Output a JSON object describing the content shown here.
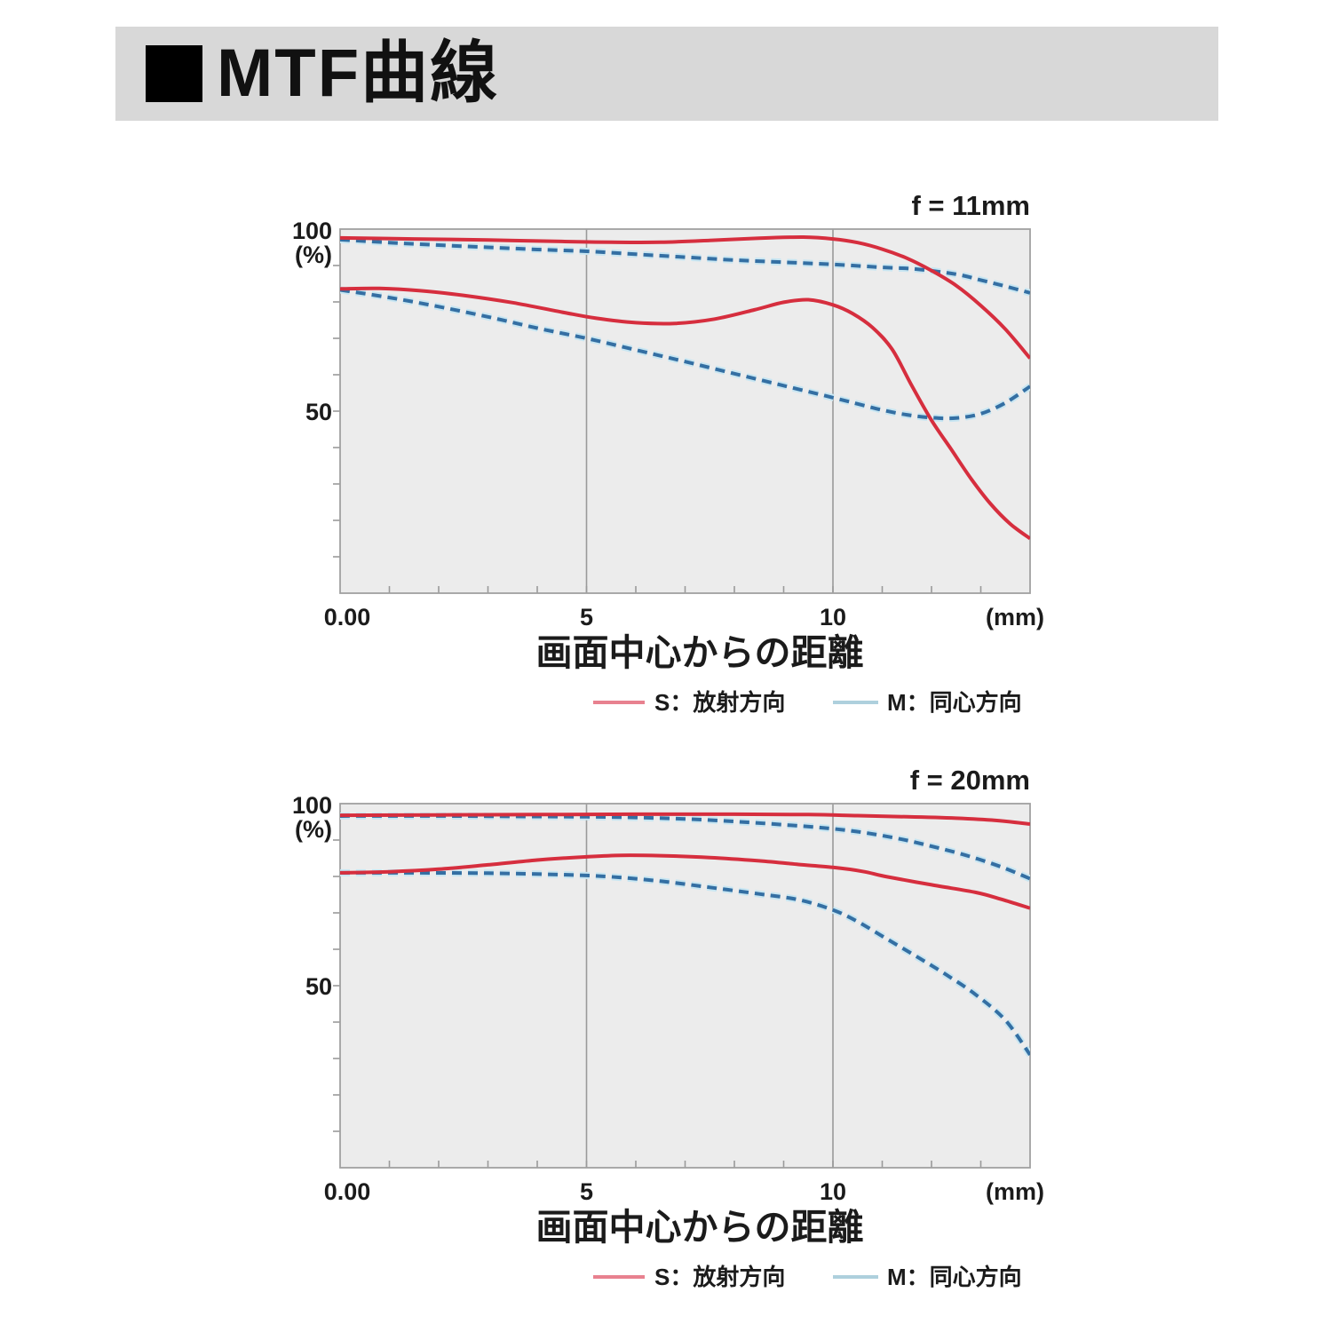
{
  "header": {
    "square_icon": "black-square",
    "title": "MTF曲線",
    "bar_color": "#d8d8d8"
  },
  "chart_data": [
    {
      "type": "line",
      "title": "f = 11mm",
      "xlabel": "画面中心からの距離",
      "x_unit_label": "(mm)",
      "xlim": [
        0,
        14
      ],
      "ylim": [
        0,
        100
      ],
      "y_axis_labels": {
        "top": "100",
        "unit": "(%)",
        "mid": "50"
      },
      "x_tick_labels": [
        {
          "x": 0,
          "label": "0.00"
        },
        {
          "x": 5,
          "label": "5"
        },
        {
          "x": 10,
          "label": "10"
        }
      ],
      "x_minor_tick_step": 1,
      "y_minor_tick_step": 10,
      "gridlines_x": [
        5,
        10
      ],
      "grid_on": true,
      "grid_color": "#9a9a9a",
      "plot_bg": "#ececec",
      "border_color": "#a0a0a0",
      "legend_position": "below",
      "legend": [
        {
          "label": "S：放射方向",
          "swatch_color": "#e8818f"
        },
        {
          "label": "M：同心方向",
          "swatch_color": "#aed0dd"
        }
      ],
      "series": [
        {
          "name": "S-upper",
          "style": "solid",
          "color": "#d62e3e",
          "points": [
            [
              0,
              97.6
            ],
            [
              1.5,
              97.3
            ],
            [
              3,
              97.0
            ],
            [
              4.5,
              96.6
            ],
            [
              5.5,
              96.4
            ],
            [
              6.5,
              96.4
            ],
            [
              7.5,
              96.9
            ],
            [
              8.5,
              97.5
            ],
            [
              9.4,
              97.8
            ],
            [
              10,
              97.3
            ],
            [
              10.5,
              96.3
            ],
            [
              11,
              94.5
            ],
            [
              11.5,
              92
            ],
            [
              12,
              88.6
            ],
            [
              12.5,
              84.5
            ],
            [
              13,
              79
            ],
            [
              13.5,
              72.5
            ],
            [
              14,
              64.5
            ]
          ]
        },
        {
          "name": "M-upper",
          "style": "dashed",
          "color": "#346fa3",
          "halo": "#c8e6f2",
          "points": [
            [
              0,
              97.1
            ],
            [
              1,
              96.3
            ],
            [
              2,
              95.6
            ],
            [
              3,
              95
            ],
            [
              4,
              94.4
            ],
            [
              5,
              93.9
            ],
            [
              6,
              93.1
            ],
            [
              7,
              92.3
            ],
            [
              8,
              91.5
            ],
            [
              9,
              90.9
            ],
            [
              10,
              90.3
            ],
            [
              11,
              89.5
            ],
            [
              11.7,
              89
            ],
            [
              12.5,
              87.6
            ],
            [
              13,
              86
            ],
            [
              13.5,
              84.3
            ],
            [
              14,
              82.5
            ]
          ]
        },
        {
          "name": "S-lower",
          "style": "solid",
          "color": "#d62e3e",
          "points": [
            [
              0,
              83.6
            ],
            [
              0.8,
              83.7
            ],
            [
              1.6,
              83.1
            ],
            [
              2.5,
              81.8
            ],
            [
              3.5,
              79.8
            ],
            [
              4.5,
              77.2
            ],
            [
              5.2,
              75.5
            ],
            [
              6,
              74.3
            ],
            [
              6.8,
              74.1
            ],
            [
              7.6,
              75.3
            ],
            [
              8.4,
              77.8
            ],
            [
              9,
              79.9
            ],
            [
              9.5,
              80.6
            ],
            [
              10,
              79.2
            ],
            [
              10.4,
              76.8
            ],
            [
              10.8,
              73
            ],
            [
              11.2,
              67
            ],
            [
              11.6,
              57
            ],
            [
              12,
              47.5
            ],
            [
              12.4,
              39.5
            ],
            [
              12.8,
              31.5
            ],
            [
              13.2,
              24.5
            ],
            [
              13.6,
              19
            ],
            [
              14,
              15
            ]
          ]
        },
        {
          "name": "M-lower",
          "style": "dashed",
          "color": "#346fa3",
          "halo": "#c8e6f2",
          "points": [
            [
              0,
              83.3
            ],
            [
              1,
              81.2
            ],
            [
              2,
              78.7
            ],
            [
              3,
              75.9
            ],
            [
              4,
              72.8
            ],
            [
              5,
              70
            ],
            [
              6,
              66.8
            ],
            [
              7,
              63.6
            ],
            [
              8,
              60.3
            ],
            [
              9,
              57
            ],
            [
              10,
              53.7
            ],
            [
              10.5,
              52
            ],
            [
              11,
              50.3
            ],
            [
              11.5,
              49
            ],
            [
              12,
              48.2
            ],
            [
              12.5,
              48.1
            ],
            [
              13,
              49.3
            ],
            [
              13.5,
              52.3
            ],
            [
              14,
              56.8
            ]
          ]
        }
      ]
    },
    {
      "type": "line",
      "title": "f = 20mm",
      "xlabel": "画面中心からの距離",
      "x_unit_label": "(mm)",
      "xlim": [
        0,
        14
      ],
      "ylim": [
        0,
        100
      ],
      "y_axis_labels": {
        "top": "100",
        "unit": "(%)",
        "mid": "50"
      },
      "x_tick_labels": [
        {
          "x": 0,
          "label": "0.00"
        },
        {
          "x": 5,
          "label": "5"
        },
        {
          "x": 10,
          "label": "10"
        }
      ],
      "x_minor_tick_step": 1,
      "y_minor_tick_step": 10,
      "gridlines_x": [
        5,
        10
      ],
      "grid_on": true,
      "grid_color": "#9a9a9a",
      "plot_bg": "#ececec",
      "border_color": "#a0a0a0",
      "legend_position": "below",
      "legend": [
        {
          "label": "S：放射方向",
          "swatch_color": "#e8818f"
        },
        {
          "label": "M：同心方向",
          "swatch_color": "#aed0dd"
        }
      ],
      "series": [
        {
          "name": "S-upper",
          "style": "solid",
          "color": "#d62e3e",
          "points": [
            [
              0,
              96.8
            ],
            [
              2,
              96.9
            ],
            [
              4,
              97
            ],
            [
              6,
              97.1
            ],
            [
              8,
              97.1
            ],
            [
              9.5,
              97
            ],
            [
              10.5,
              96.7
            ],
            [
              11.5,
              96.4
            ],
            [
              12.5,
              96
            ],
            [
              13.3,
              95.4
            ],
            [
              14,
              94.4
            ]
          ]
        },
        {
          "name": "M-upper",
          "style": "dashed",
          "color": "#346fa3",
          "halo": "#c8e6f2",
          "points": [
            [
              0,
              96.6
            ],
            [
              2,
              96.6
            ],
            [
              3.5,
              96.5
            ],
            [
              5,
              96.4
            ],
            [
              6,
              96.2
            ],
            [
              7,
              95.8
            ],
            [
              8,
              95.1
            ],
            [
              9,
              94.2
            ],
            [
              10,
              93.1
            ],
            [
              10.7,
              91.9
            ],
            [
              11.4,
              90.2
            ],
            [
              12,
              88.3
            ],
            [
              12.7,
              85.8
            ],
            [
              13.4,
              82.7
            ],
            [
              14,
              79.4
            ]
          ]
        },
        {
          "name": "S-lower",
          "style": "solid",
          "color": "#d62e3e",
          "points": [
            [
              0,
              81
            ],
            [
              1,
              81.3
            ],
            [
              2,
              82
            ],
            [
              3,
              83.2
            ],
            [
              4,
              84.5
            ],
            [
              5,
              85.4
            ],
            [
              5.7,
              85.8
            ],
            [
              6.5,
              85.7
            ],
            [
              7.5,
              85.2
            ],
            [
              8.5,
              84.3
            ],
            [
              9.3,
              83.3
            ],
            [
              10,
              82.5
            ],
            [
              10.6,
              81.4
            ],
            [
              11.1,
              79.9
            ],
            [
              12,
              77.7
            ],
            [
              12.9,
              75.6
            ],
            [
              13.4,
              73.8
            ],
            [
              14,
              71.3
            ]
          ]
        },
        {
          "name": "M-lower",
          "style": "dashed",
          "color": "#346fa3",
          "halo": "#c8e6f2",
          "points": [
            [
              0,
              81
            ],
            [
              1.5,
              81
            ],
            [
              3,
              80.9
            ],
            [
              4.5,
              80.5
            ],
            [
              5.5,
              79.9
            ],
            [
              6.5,
              78.7
            ],
            [
              7.5,
              77
            ],
            [
              8.5,
              75.2
            ],
            [
              9.3,
              73.6
            ],
            [
              10,
              70.8
            ],
            [
              10.5,
              67.6
            ],
            [
              11.1,
              62.8
            ],
            [
              11.7,
              58
            ],
            [
              12.3,
              53
            ],
            [
              12.9,
              47.5
            ],
            [
              13.5,
              40.5
            ],
            [
              14,
              31
            ]
          ]
        }
      ]
    }
  ]
}
